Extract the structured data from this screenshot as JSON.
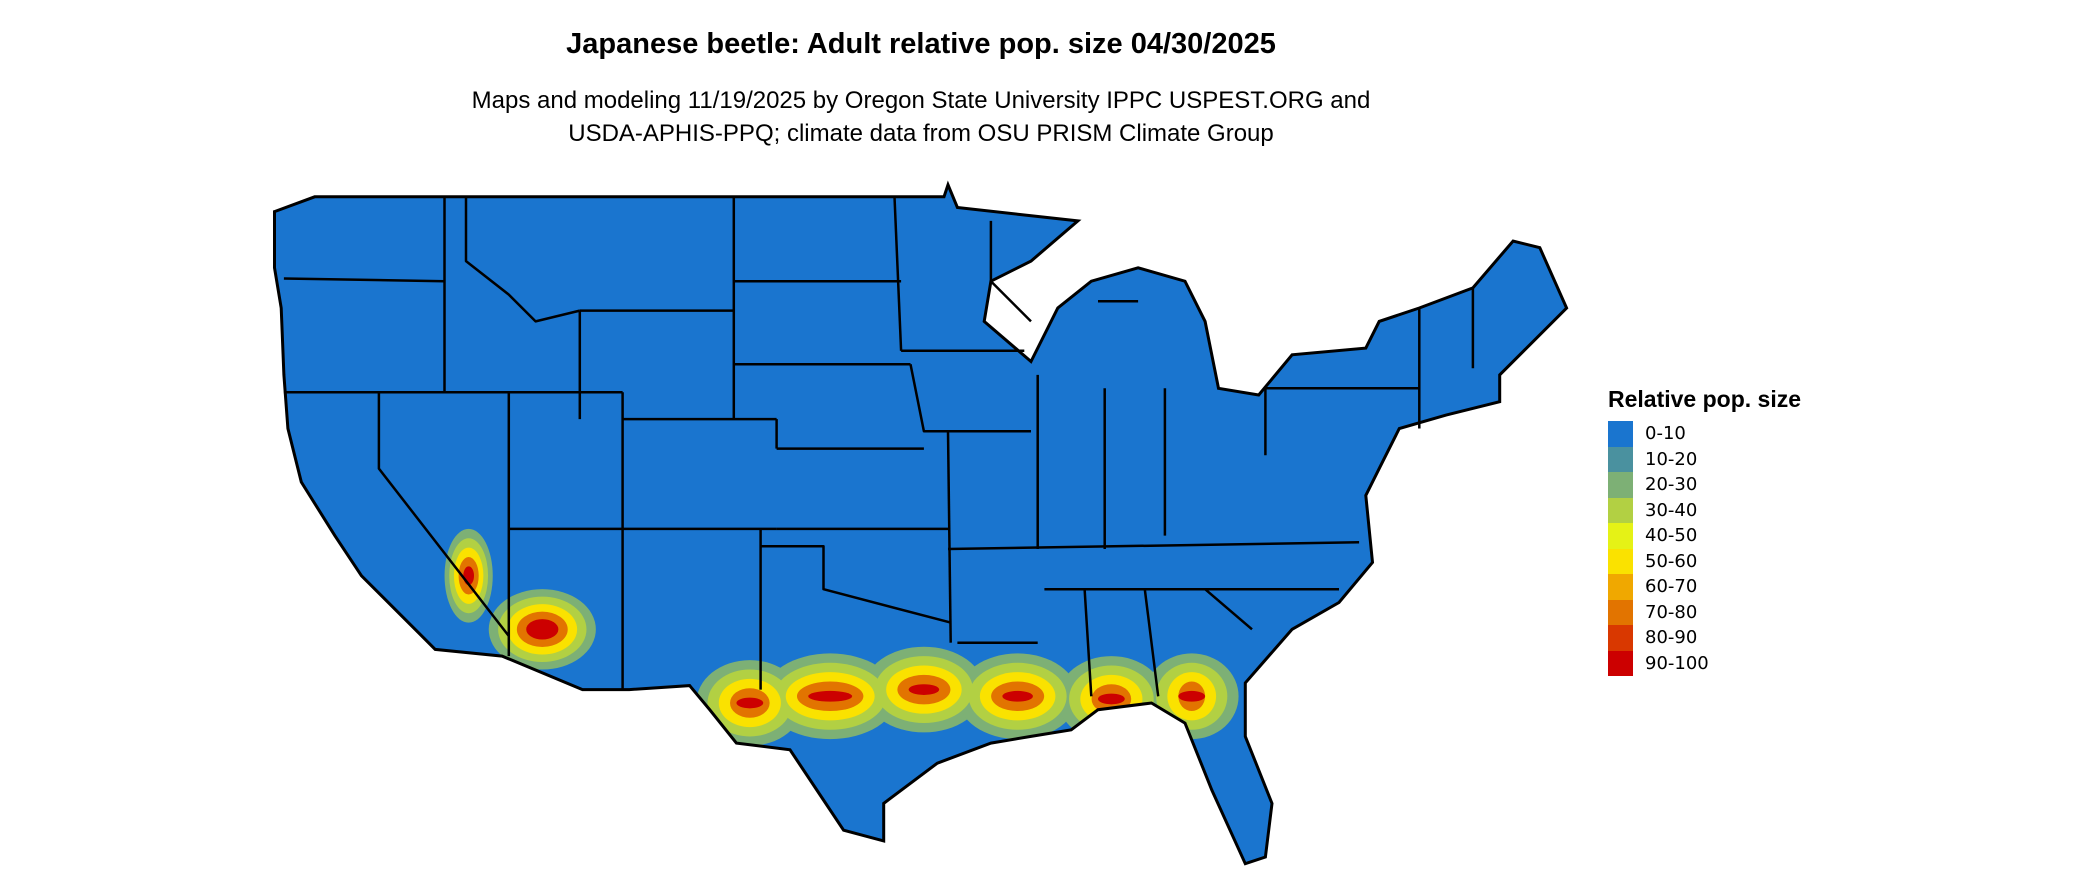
{
  "title": "Japanese beetle: Adult relative pop. size 04/30/2025",
  "subtitle_lines": [
    "Maps and modeling 11/19/2025 by Oregon State University IPPC USPEST.ORG and",
    "USDA-APHIS-PPQ; climate data from OSU PRISM Climate Group"
  ],
  "map": {
    "region": "Contiguous United States",
    "base_color": "#1a75cf",
    "border_color": "#000000",
    "hotspots": [
      "Gulf Coast band (TX to GA/FL)",
      "Southern Arizona / SE California deserts"
    ]
  },
  "legend": {
    "title": "Relative pop. size",
    "items": [
      {
        "label": "0-10",
        "color": "#1a75cf"
      },
      {
        "label": "10-20",
        "color": "#4a919f"
      },
      {
        "label": "20-30",
        "color": "#7db075"
      },
      {
        "label": "30-40",
        "color": "#b2d043"
      },
      {
        "label": "40-50",
        "color": "#e5f216"
      },
      {
        "label": "50-60",
        "color": "#fae200"
      },
      {
        "label": "60-70",
        "color": "#f0a800"
      },
      {
        "label": "70-80",
        "color": "#e27400"
      },
      {
        "label": "80-90",
        "color": "#d93800"
      },
      {
        "label": "90-100",
        "color": "#cc0000"
      }
    ]
  }
}
